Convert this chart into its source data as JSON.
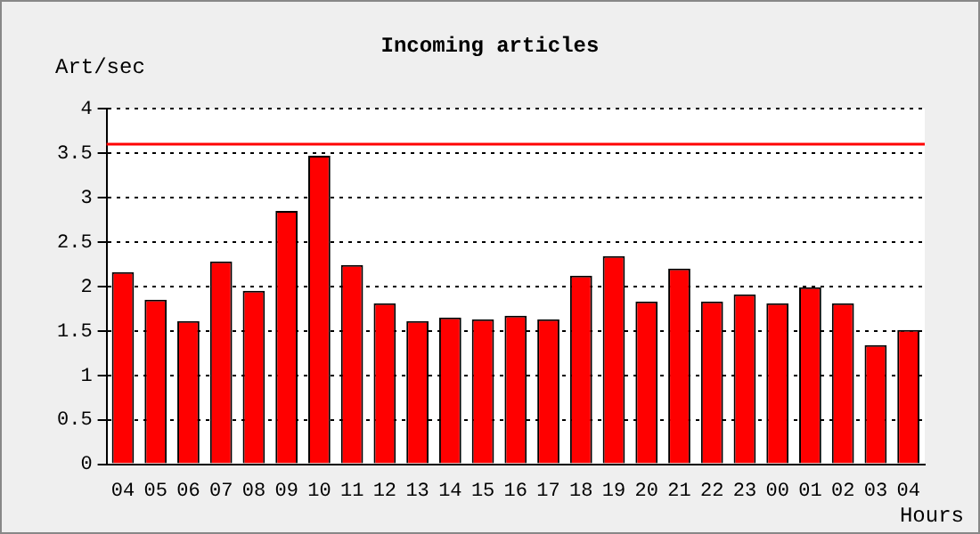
{
  "chart_data": {
    "type": "bar",
    "title": "Incoming articles",
    "xlabel": "Hours",
    "ylabel": "Art/sec",
    "categories": [
      "04",
      "05",
      "06",
      "07",
      "08",
      "09",
      "10",
      "11",
      "12",
      "13",
      "14",
      "15",
      "16",
      "17",
      "18",
      "19",
      "20",
      "21",
      "22",
      "23",
      "00",
      "01",
      "02",
      "03",
      "04"
    ],
    "values": [
      2.16,
      1.85,
      1.61,
      2.28,
      1.95,
      2.85,
      3.47,
      2.24,
      1.81,
      1.61,
      1.65,
      1.63,
      1.67,
      1.63,
      2.12,
      2.34,
      1.83,
      2.2,
      1.83,
      1.91,
      1.81,
      1.99,
      1.81,
      1.34,
      1.51
    ],
    "color": "#ff0000",
    "ylim": [
      0,
      4
    ],
    "yticks": [
      0,
      0.5,
      1,
      1.5,
      2,
      2.5,
      3,
      3.5,
      4
    ],
    "grid": "y",
    "line_style": "dotted",
    "ref_lines": [
      {
        "axis": "y",
        "value": 3.6,
        "color": "#ff0000"
      }
    ]
  }
}
